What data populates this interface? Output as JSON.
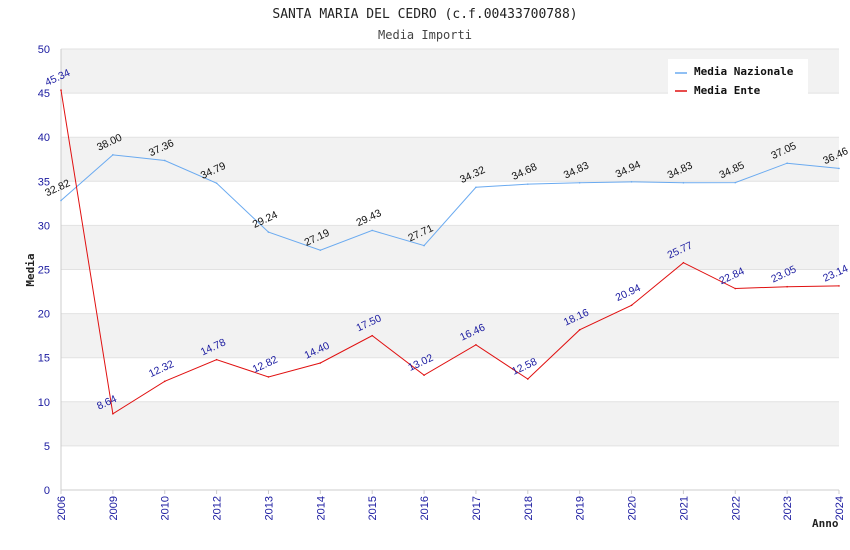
{
  "chart_data": {
    "type": "line",
    "title": "SANTA MARIA DEL CEDRO (c.f.00433700788)",
    "subtitle": "Media Importi",
    "xlabel": "Anno",
    "ylabel": "Media",
    "ylim": [
      0,
      50
    ],
    "yticks": [
      0,
      5,
      10,
      15,
      20,
      25,
      30,
      35,
      40,
      45,
      50
    ],
    "categories": [
      "2006",
      "2009",
      "2010",
      "2012",
      "2013",
      "2014",
      "2015",
      "2016",
      "2017",
      "2018",
      "2019",
      "2020",
      "2021",
      "2022",
      "2023",
      "2024"
    ],
    "series": [
      {
        "name": "Media Nazionale",
        "color": "#6aaaf0",
        "values": [
          32.82,
          38.0,
          37.36,
          34.79,
          29.24,
          27.19,
          29.43,
          27.71,
          34.32,
          34.68,
          34.83,
          34.94,
          34.83,
          34.85,
          37.05,
          36.46
        ],
        "labels": [
          "32.82",
          "38.00",
          "37.36",
          "34.79",
          "29.24",
          "27.19",
          "29.43",
          "27.71",
          "34.32",
          "34.68",
          "34.83",
          "34.94",
          "34.83",
          "34.85",
          "37.05",
          "36.46"
        ],
        "label_color": "#111111"
      },
      {
        "name": "Media Ente",
        "color": "#e01010",
        "values": [
          45.34,
          8.64,
          12.32,
          14.78,
          12.82,
          14.4,
          17.5,
          13.02,
          16.46,
          12.58,
          18.16,
          20.94,
          25.77,
          22.84,
          23.05,
          23.14
        ],
        "labels": [
          "45.34",
          "8.64",
          "12.32",
          "14.78",
          "12.82",
          "14.40",
          "17.50",
          "13.02",
          "16.46",
          "12.58",
          "18.16",
          "20.94",
          "25.77",
          "22.84",
          "23.05",
          "23.14"
        ],
        "label_color": "#1a1aa0"
      }
    ],
    "legend_position": "top-right",
    "grid": true
  }
}
